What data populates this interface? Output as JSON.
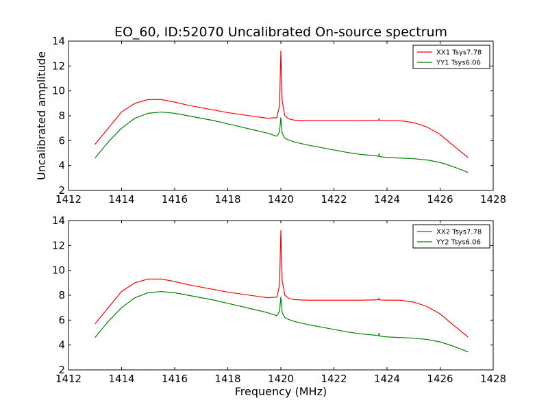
{
  "chart_data": [
    {
      "type": "line",
      "title": "EO_60, ID:52070 Uncalibrated On-source spectrum",
      "xlabel": "",
      "ylabel": "Uncalibrated amplitude",
      "xlim": [
        1412,
        1428
      ],
      "ylim": [
        2,
        14
      ],
      "xticks": [
        1412,
        1414,
        1416,
        1418,
        1420,
        1422,
        1424,
        1426,
        1428
      ],
      "yticks": [
        2,
        4,
        6,
        8,
        10,
        12,
        14
      ],
      "legend_position": "top-right",
      "grid": false,
      "series": [
        {
          "name": "XX1 Tsys7.78",
          "color": "#ff0000",
          "x": [
            1413.0,
            1413.5,
            1414.0,
            1414.5,
            1415.0,
            1415.5,
            1416.0,
            1416.5,
            1417.0,
            1417.5,
            1418.0,
            1418.5,
            1419.0,
            1419.5,
            1419.85,
            1419.95,
            1420.0,
            1420.05,
            1420.15,
            1420.3,
            1420.5,
            1421.0,
            1421.5,
            1422.0,
            1422.5,
            1423.0,
            1423.5,
            1423.68,
            1423.7,
            1423.72,
            1424.0,
            1424.5,
            1425.0,
            1425.5,
            1426.0,
            1426.5,
            1427.05
          ],
          "y": [
            5.7,
            7.0,
            8.3,
            9.0,
            9.3,
            9.3,
            9.1,
            8.85,
            8.65,
            8.45,
            8.25,
            8.1,
            7.95,
            7.8,
            7.85,
            8.8,
            13.2,
            9.2,
            8.0,
            7.75,
            7.65,
            7.6,
            7.6,
            7.6,
            7.6,
            7.6,
            7.62,
            7.65,
            7.75,
            7.62,
            7.6,
            7.6,
            7.45,
            7.1,
            6.5,
            5.6,
            4.65
          ]
        },
        {
          "name": "YY1 Tsys6.06",
          "color": "#008000",
          "x": [
            1413.0,
            1413.5,
            1414.0,
            1414.5,
            1415.0,
            1415.5,
            1416.0,
            1416.5,
            1417.0,
            1417.5,
            1418.0,
            1418.5,
            1419.0,
            1419.5,
            1419.85,
            1419.95,
            1420.0,
            1420.05,
            1420.15,
            1420.3,
            1420.5,
            1421.0,
            1421.5,
            1422.0,
            1422.5,
            1423.0,
            1423.5,
            1423.68,
            1423.7,
            1423.72,
            1424.0,
            1424.5,
            1425.0,
            1425.5,
            1426.0,
            1426.5,
            1427.05
          ],
          "y": [
            4.6,
            5.9,
            7.0,
            7.8,
            8.2,
            8.3,
            8.2,
            8.0,
            7.8,
            7.6,
            7.35,
            7.1,
            6.85,
            6.6,
            6.35,
            6.7,
            7.85,
            6.6,
            6.2,
            6.05,
            5.9,
            5.65,
            5.45,
            5.25,
            5.05,
            4.9,
            4.8,
            4.75,
            4.95,
            4.72,
            4.65,
            4.6,
            4.55,
            4.45,
            4.25,
            3.9,
            3.45
          ]
        }
      ]
    },
    {
      "type": "line",
      "title": "",
      "xlabel": "Frequency (MHz)",
      "ylabel": "",
      "xlim": [
        1412,
        1428
      ],
      "ylim": [
        2,
        14
      ],
      "xticks": [
        1412,
        1414,
        1416,
        1418,
        1420,
        1422,
        1424,
        1426,
        1428
      ],
      "yticks": [
        2,
        4,
        6,
        8,
        10,
        12,
        14
      ],
      "legend_position": "top-right",
      "grid": false,
      "series": [
        {
          "name": "XX2 Tsys7.78",
          "color": "#ff0000",
          "x": [
            1413.0,
            1413.5,
            1414.0,
            1414.5,
            1415.0,
            1415.5,
            1416.0,
            1416.5,
            1417.0,
            1417.5,
            1418.0,
            1418.5,
            1419.0,
            1419.5,
            1419.85,
            1419.95,
            1420.0,
            1420.05,
            1420.15,
            1420.3,
            1420.5,
            1421.0,
            1421.5,
            1422.0,
            1422.5,
            1423.0,
            1423.5,
            1423.68,
            1423.7,
            1423.72,
            1424.0,
            1424.5,
            1425.0,
            1425.5,
            1426.0,
            1426.5,
            1427.05
          ],
          "y": [
            5.7,
            7.0,
            8.3,
            9.0,
            9.3,
            9.3,
            9.1,
            8.85,
            8.65,
            8.45,
            8.25,
            8.1,
            7.95,
            7.8,
            7.85,
            8.8,
            13.2,
            9.2,
            8.0,
            7.75,
            7.65,
            7.6,
            7.6,
            7.6,
            7.6,
            7.6,
            7.62,
            7.65,
            7.75,
            7.62,
            7.6,
            7.6,
            7.45,
            7.1,
            6.5,
            5.6,
            4.65
          ]
        },
        {
          "name": "YY2 Tsys6.06",
          "color": "#008000",
          "x": [
            1413.0,
            1413.5,
            1414.0,
            1414.5,
            1415.0,
            1415.5,
            1416.0,
            1416.5,
            1417.0,
            1417.5,
            1418.0,
            1418.5,
            1419.0,
            1419.5,
            1419.85,
            1419.95,
            1420.0,
            1420.05,
            1420.15,
            1420.3,
            1420.5,
            1421.0,
            1421.5,
            1422.0,
            1422.5,
            1423.0,
            1423.5,
            1423.68,
            1423.7,
            1423.72,
            1424.0,
            1424.5,
            1425.0,
            1425.5,
            1426.0,
            1426.5,
            1427.05
          ],
          "y": [
            4.6,
            5.9,
            7.0,
            7.8,
            8.2,
            8.3,
            8.2,
            8.0,
            7.8,
            7.6,
            7.35,
            7.1,
            6.85,
            6.6,
            6.35,
            6.7,
            7.85,
            6.6,
            6.2,
            6.05,
            5.9,
            5.65,
            5.45,
            5.25,
            5.05,
            4.9,
            4.8,
            4.75,
            4.95,
            4.72,
            4.65,
            4.6,
            4.55,
            4.45,
            4.25,
            3.9,
            3.45
          ]
        }
      ]
    }
  ]
}
